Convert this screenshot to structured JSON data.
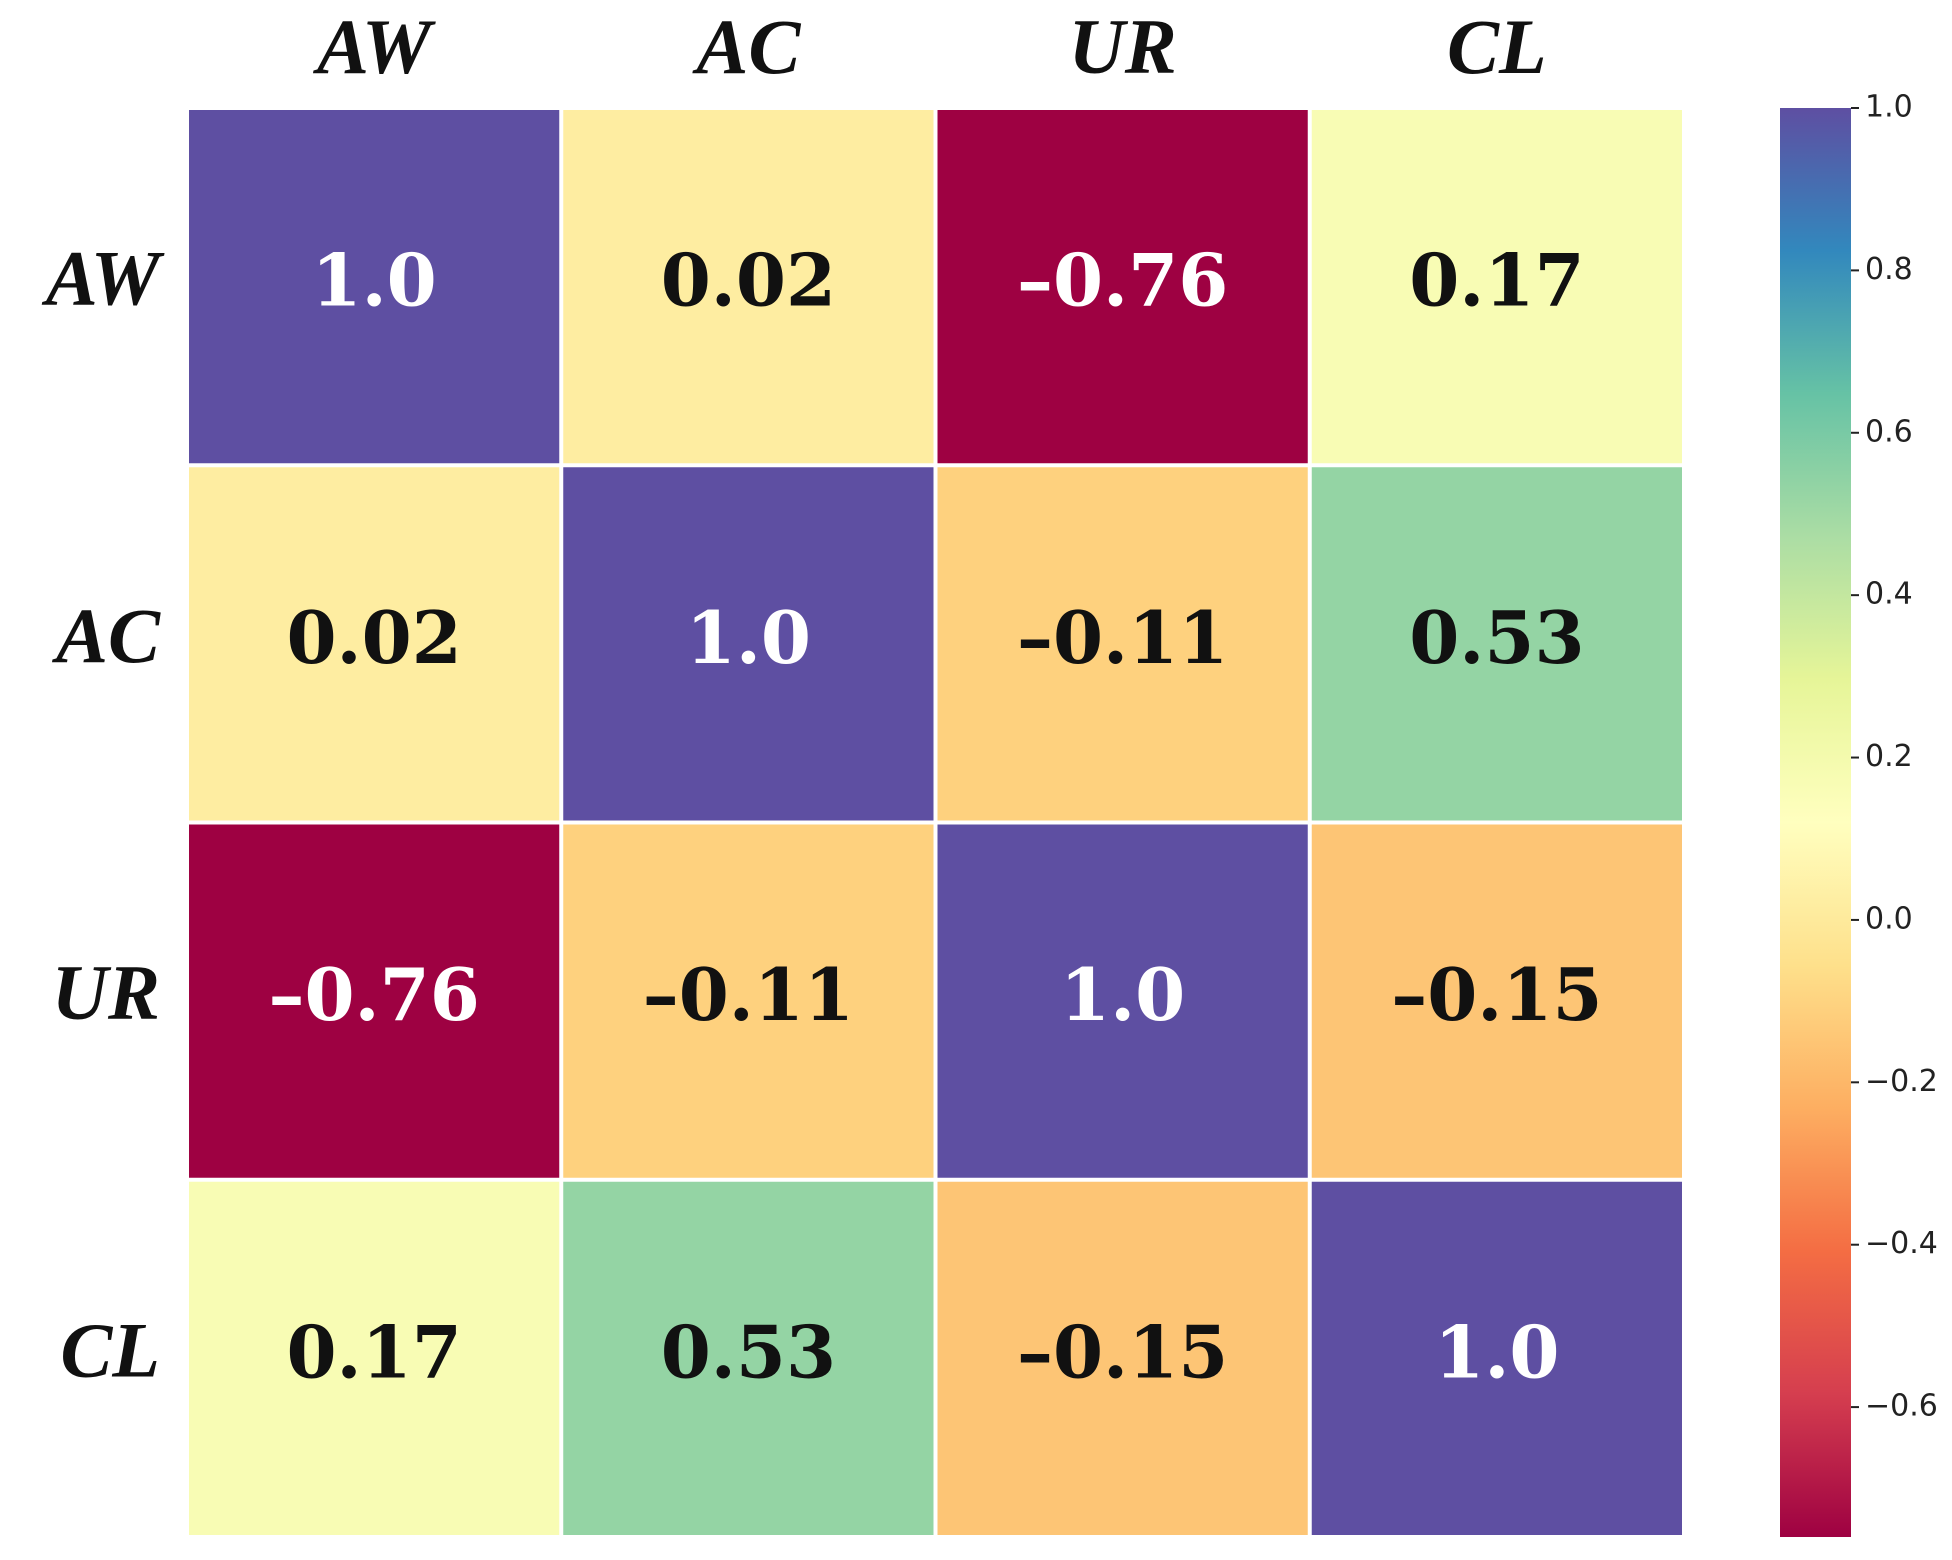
{
  "chart_data": {
    "type": "heatmap",
    "x_categories": [
      "AW",
      "AC",
      "UR",
      "CL"
    ],
    "y_categories": [
      "AW",
      "AC",
      "UR",
      "CL"
    ],
    "values": [
      [
        1.0,
        0.02,
        -0.76,
        0.17
      ],
      [
        0.02,
        1.0,
        -0.11,
        0.53
      ],
      [
        -0.76,
        -0.11,
        1.0,
        -0.15
      ],
      [
        0.17,
        0.53,
        -0.15,
        1.0
      ]
    ],
    "value_labels": [
      [
        "1.0",
        "0.02",
        "–0.76",
        "0.17"
      ],
      [
        "0.02",
        "1.0",
        "–0.11",
        "0.53"
      ],
      [
        "–0.76",
        "–0.11",
        "1.0",
        "–0.15"
      ],
      [
        "0.17",
        "0.53",
        "–0.15",
        "1.0"
      ]
    ],
    "colormap": "Spectral",
    "zlim": [
      -0.76,
      1.0
    ],
    "zticks": [
      {
        "value": 1.0,
        "label": "1.0"
      },
      0.8,
      0.6,
      0.4,
      0.2,
      {
        "value": 0.0,
        "label": "0.0"
      },
      {
        "value": -0.2,
        "label": "−0.2"
      },
      {
        "value": -0.4,
        "label": "−0.4"
      },
      {
        "value": -0.6,
        "label": "−0.6"
      }
    ]
  }
}
